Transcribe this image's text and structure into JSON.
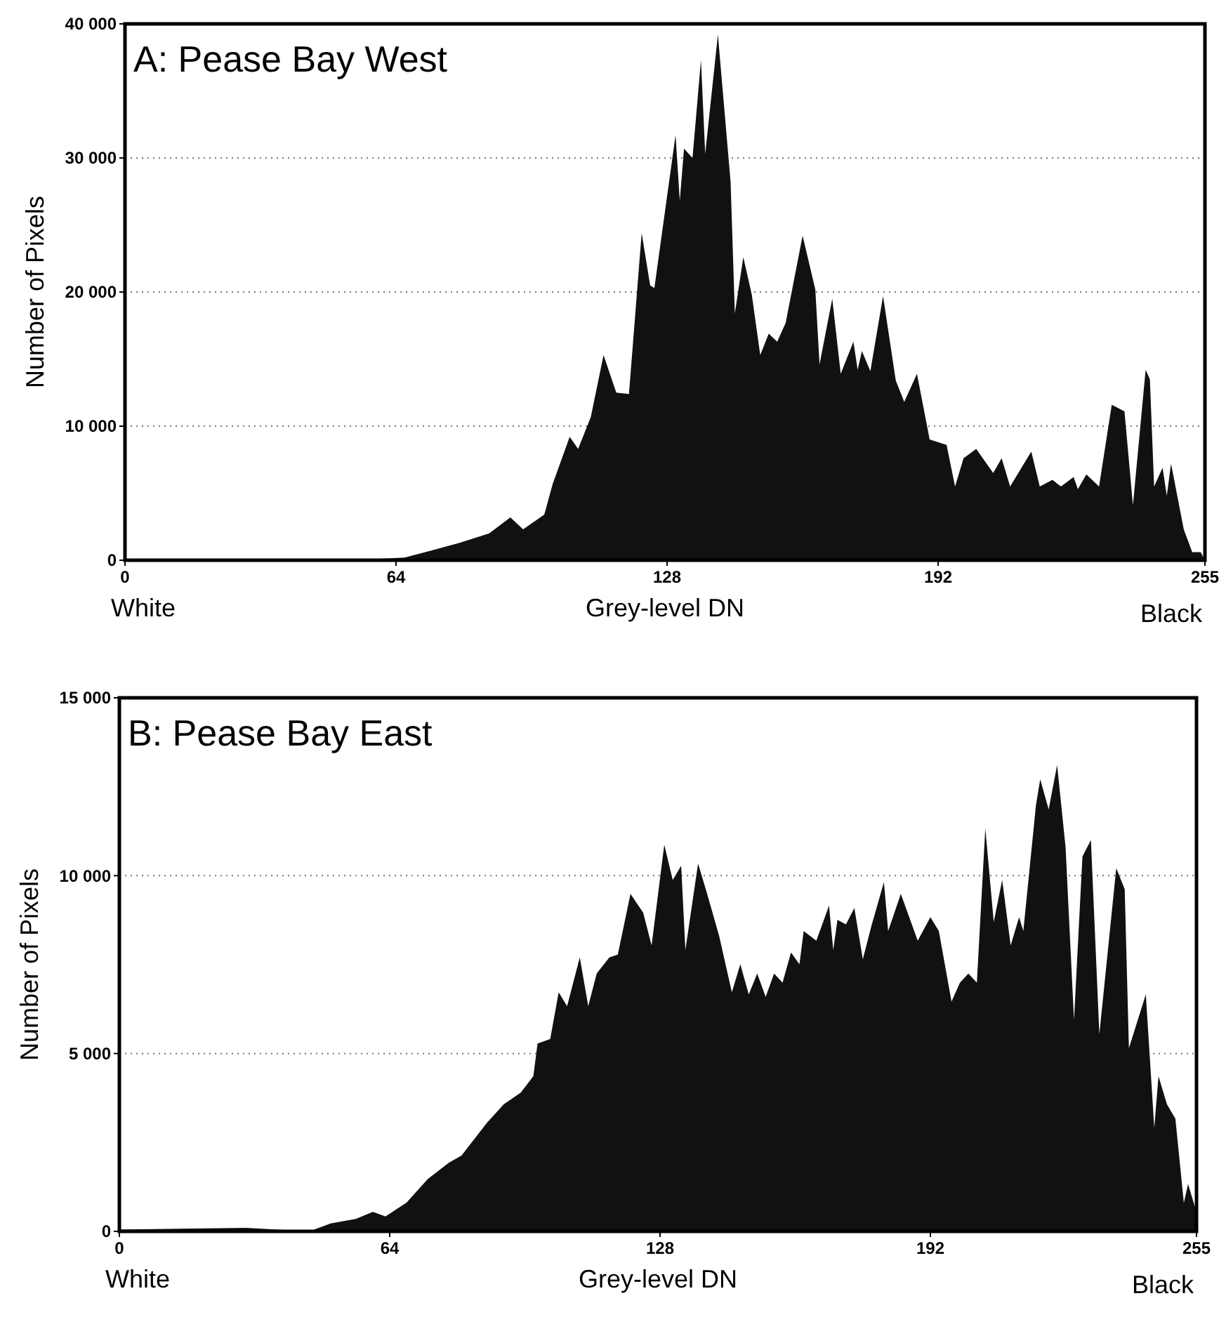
{
  "chart_data": [
    {
      "type": "area",
      "title": "A: Pease Bay West",
      "xlabel": "Grey-level DN",
      "ylabel": "Number of Pixels",
      "annotations": [
        "White",
        "Black"
      ],
      "grid": "y",
      "xlim": [
        0,
        255
      ],
      "xticks": [
        0,
        64,
        128,
        192,
        255
      ],
      "ylim": [
        0,
        40000
      ],
      "yticks": [
        0,
        {
          "value": 10000,
          "label": "10 000"
        },
        {
          "value": 20000,
          "label": "20 000"
        },
        {
          "value": 30000,
          "label": "30 000"
        },
        {
          "value": 40000,
          "label": "40 000"
        }
      ],
      "series": [
        {
          "color": "#111111",
          "x": [
            0,
            30,
            60,
            66,
            72,
            79,
            86,
            91,
            94,
            99,
            101,
            105,
            107,
            110,
            113,
            116,
            119,
            122,
            124,
            125,
            130,
            131,
            132,
            134,
            136,
            137,
            140,
            143,
            144,
            146,
            148,
            150,
            152,
            154,
            156,
            160,
            163,
            164,
            167,
            169,
            172,
            173,
            174,
            176,
            179,
            182,
            184,
            187,
            190,
            194,
            196,
            198,
            201,
            205,
            207,
            209,
            214,
            216,
            219,
            221,
            224,
            225,
            227,
            230,
            233,
            236,
            238,
            241,
            242,
            243,
            245,
            246,
            247,
            250,
            252,
            254,
            255
          ],
          "values": [
            100,
            100,
            100,
            200,
            700,
            1300,
            2000,
            3200,
            2300,
            3400,
            5700,
            9200,
            8300,
            10700,
            15300,
            12500,
            12400,
            24400,
            20500,
            20300,
            31700,
            26800,
            30700,
            30000,
            37300,
            30300,
            39200,
            28200,
            18400,
            22600,
            19800,
            15300,
            16900,
            16300,
            17700,
            24200,
            20200,
            14600,
            19500,
            13900,
            16300,
            14200,
            15600,
            14100,
            19700,
            13400,
            11800,
            13900,
            9000,
            8600,
            5500,
            7600,
            8300,
            6500,
            7600,
            5500,
            8100,
            5500,
            6000,
            5500,
            6200,
            5300,
            6400,
            5500,
            11600,
            11100,
            4100,
            14200,
            13500,
            5500,
            6900,
            4800,
            7200,
            2300,
            600,
            600,
            0
          ]
        }
      ]
    },
    {
      "type": "area",
      "title": "B: Pease Bay East",
      "xlabel": "Grey-level DN",
      "ylabel": "Number of Pixels",
      "annotations": [
        "White",
        "Black"
      ],
      "grid": "y",
      "xlim": [
        0,
        255
      ],
      "xticks": [
        0,
        64,
        128,
        192,
        255
      ],
      "ylim": [
        0,
        15000
      ],
      "yticks": [
        0,
        {
          "value": 5000,
          "label": "5 000"
        },
        {
          "value": 10000,
          "label": "10 000"
        },
        {
          "value": 15000,
          "label": "15 000"
        }
      ],
      "series": [
        {
          "color": "#111111",
          "x": [
            0,
            30,
            45,
            50,
            56,
            60,
            63,
            68,
            73,
            78,
            81,
            87,
            91,
            95,
            98,
            99,
            102,
            104,
            106,
            109,
            111,
            113,
            116,
            118,
            121,
            124,
            126,
            129,
            131,
            133,
            134,
            137,
            139,
            142,
            145,
            147,
            149,
            151,
            153,
            155,
            157,
            159,
            161,
            162,
            165,
            168,
            169,
            170,
            172,
            174,
            176,
            178,
            181,
            182,
            185,
            189,
            192,
            194,
            197,
            199,
            201,
            203,
            205,
            207,
            209,
            211,
            213,
            214,
            217,
            218,
            220,
            222,
            224,
            226,
            228,
            230,
            232,
            236,
            238,
            239,
            243,
            245,
            246,
            248,
            250,
            252,
            253,
            255
          ],
          "values": [
            50,
            100,
            0,
            220,
            350,
            550,
            420,
            810,
            1470,
            1930,
            2130,
            3050,
            3570,
            3900,
            4360,
            5280,
            5410,
            6720,
            6330,
            7700,
            6330,
            7250,
            7700,
            7780,
            9490,
            8960,
            8040,
            10870,
            9880,
            10280,
            7910,
            10340,
            9550,
            8300,
            6720,
            7510,
            6660,
            7250,
            6590,
            7250,
            6990,
            7840,
            7510,
            8440,
            8170,
            9160,
            7910,
            8760,
            8630,
            9090,
            7650,
            8570,
            9820,
            8440,
            9490,
            8170,
            8830,
            8440,
            6460,
            6990,
            7250,
            6990,
            11330,
            8700,
            9880,
            8040,
            8830,
            8440,
            11990,
            12710,
            11860,
            13110,
            10800,
            5940,
            10540,
            11000,
            5540,
            10210,
            9620,
            5150,
            6660,
            2910,
            4360,
            3570,
            3170,
            800,
            1330,
            540
          ]
        }
      ]
    }
  ]
}
